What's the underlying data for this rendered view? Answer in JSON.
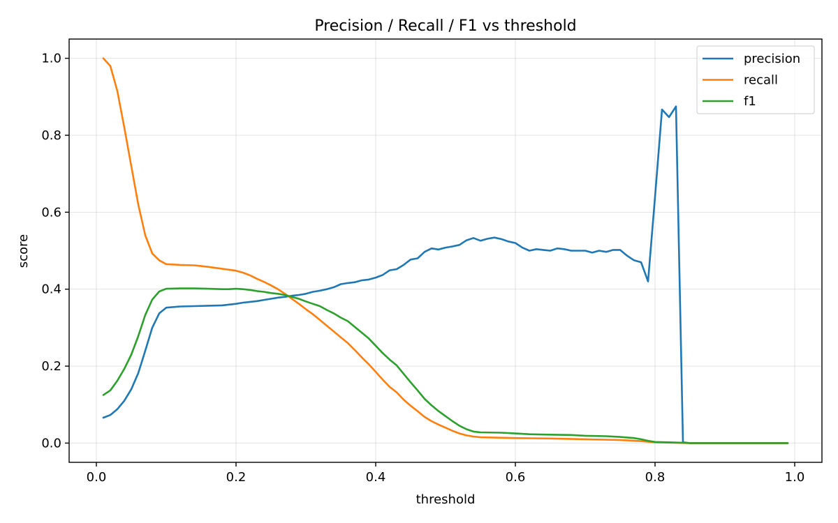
{
  "chart_data": {
    "type": "line",
    "title": "Precision / Recall / F1 vs threshold",
    "xlabel": "threshold",
    "ylabel": "score",
    "xlim": [
      -0.039,
      1.039
    ],
    "ylim": [
      -0.05,
      1.05
    ],
    "xticks": [
      0.0,
      0.2,
      0.4,
      0.6,
      0.8,
      1.0
    ],
    "xtick_labels": [
      "0.0",
      "0.2",
      "0.4",
      "0.6",
      "0.8",
      "1.0"
    ],
    "yticks": [
      0.0,
      0.2,
      0.4,
      0.6,
      0.8,
      1.0
    ],
    "ytick_labels": [
      "0.0",
      "0.2",
      "0.4",
      "0.6",
      "0.8",
      "1.0"
    ],
    "grid": true,
    "legend_position": "top-right",
    "series": [
      {
        "name": "precision",
        "color": "#1f77b4",
        "points": [
          [
            0.01,
            0.066
          ],
          [
            0.02,
            0.073
          ],
          [
            0.03,
            0.088
          ],
          [
            0.04,
            0.11
          ],
          [
            0.05,
            0.14
          ],
          [
            0.06,
            0.182
          ],
          [
            0.07,
            0.24
          ],
          [
            0.08,
            0.3
          ],
          [
            0.09,
            0.337
          ],
          [
            0.1,
            0.352
          ],
          [
            0.12,
            0.355
          ],
          [
            0.14,
            0.356
          ],
          [
            0.16,
            0.357
          ],
          [
            0.18,
            0.358
          ],
          [
            0.19,
            0.36
          ],
          [
            0.2,
            0.362
          ],
          [
            0.21,
            0.365
          ],
          [
            0.22,
            0.367
          ],
          [
            0.23,
            0.369
          ],
          [
            0.24,
            0.372
          ],
          [
            0.25,
            0.375
          ],
          [
            0.26,
            0.378
          ],
          [
            0.27,
            0.38
          ],
          [
            0.28,
            0.383
          ],
          [
            0.29,
            0.385
          ],
          [
            0.3,
            0.388
          ],
          [
            0.31,
            0.393
          ],
          [
            0.32,
            0.396
          ],
          [
            0.33,
            0.4
          ],
          [
            0.34,
            0.405
          ],
          [
            0.35,
            0.413
          ],
          [
            0.36,
            0.416
          ],
          [
            0.37,
            0.418
          ],
          [
            0.38,
            0.423
          ],
          [
            0.39,
            0.425
          ],
          [
            0.4,
            0.43
          ],
          [
            0.41,
            0.437
          ],
          [
            0.42,
            0.449
          ],
          [
            0.43,
            0.452
          ],
          [
            0.44,
            0.463
          ],
          [
            0.45,
            0.477
          ],
          [
            0.46,
            0.48
          ],
          [
            0.47,
            0.497
          ],
          [
            0.48,
            0.506
          ],
          [
            0.49,
            0.503
          ],
          [
            0.5,
            0.508
          ],
          [
            0.51,
            0.511
          ],
          [
            0.52,
            0.515
          ],
          [
            0.53,
            0.527
          ],
          [
            0.54,
            0.533
          ],
          [
            0.55,
            0.526
          ],
          [
            0.56,
            0.531
          ],
          [
            0.57,
            0.534
          ],
          [
            0.58,
            0.53
          ],
          [
            0.59,
            0.524
          ],
          [
            0.6,
            0.52
          ],
          [
            0.61,
            0.508
          ],
          [
            0.62,
            0.5
          ],
          [
            0.63,
            0.504
          ],
          [
            0.64,
            0.502
          ],
          [
            0.65,
            0.5
          ],
          [
            0.66,
            0.506
          ],
          [
            0.67,
            0.504
          ],
          [
            0.68,
            0.5
          ],
          [
            0.69,
            0.5
          ],
          [
            0.7,
            0.5
          ],
          [
            0.71,
            0.495
          ],
          [
            0.72,
            0.5
          ],
          [
            0.73,
            0.497
          ],
          [
            0.74,
            0.502
          ],
          [
            0.75,
            0.502
          ],
          [
            0.76,
            0.487
          ],
          [
            0.77,
            0.475
          ],
          [
            0.78,
            0.47
          ],
          [
            0.79,
            0.42
          ],
          [
            0.8,
            0.64
          ],
          [
            0.81,
            0.867
          ],
          [
            0.82,
            0.847
          ],
          [
            0.83,
            0.875
          ],
          [
            0.84,
            0.002
          ],
          [
            0.85,
            0.0
          ],
          [
            0.9,
            0.0
          ],
          [
            0.95,
            0.0
          ],
          [
            0.99,
            0.0
          ]
        ]
      },
      {
        "name": "recall",
        "color": "#ff7f0e",
        "points": [
          [
            0.01,
            1.0
          ],
          [
            0.02,
            0.98
          ],
          [
            0.03,
            0.915
          ],
          [
            0.04,
            0.82
          ],
          [
            0.05,
            0.72
          ],
          [
            0.06,
            0.62
          ],
          [
            0.07,
            0.54
          ],
          [
            0.08,
            0.493
          ],
          [
            0.09,
            0.475
          ],
          [
            0.1,
            0.465
          ],
          [
            0.12,
            0.463
          ],
          [
            0.14,
            0.462
          ],
          [
            0.15,
            0.46
          ],
          [
            0.16,
            0.458
          ],
          [
            0.18,
            0.453
          ],
          [
            0.2,
            0.448
          ],
          [
            0.21,
            0.443
          ],
          [
            0.22,
            0.436
          ],
          [
            0.23,
            0.427
          ],
          [
            0.24,
            0.419
          ],
          [
            0.25,
            0.41
          ],
          [
            0.26,
            0.4
          ],
          [
            0.27,
            0.388
          ],
          [
            0.28,
            0.375
          ],
          [
            0.29,
            0.362
          ],
          [
            0.3,
            0.348
          ],
          [
            0.31,
            0.335
          ],
          [
            0.32,
            0.32
          ],
          [
            0.33,
            0.305
          ],
          [
            0.34,
            0.29
          ],
          [
            0.35,
            0.275
          ],
          [
            0.36,
            0.26
          ],
          [
            0.37,
            0.242
          ],
          [
            0.38,
            0.223
          ],
          [
            0.39,
            0.205
          ],
          [
            0.4,
            0.185
          ],
          [
            0.41,
            0.165
          ],
          [
            0.42,
            0.146
          ],
          [
            0.43,
            0.132
          ],
          [
            0.44,
            0.113
          ],
          [
            0.45,
            0.097
          ],
          [
            0.46,
            0.083
          ],
          [
            0.47,
            0.068
          ],
          [
            0.48,
            0.057
          ],
          [
            0.49,
            0.048
          ],
          [
            0.5,
            0.04
          ],
          [
            0.51,
            0.032
          ],
          [
            0.52,
            0.025
          ],
          [
            0.53,
            0.02
          ],
          [
            0.54,
            0.017
          ],
          [
            0.55,
            0.015
          ],
          [
            0.6,
            0.013
          ],
          [
            0.65,
            0.012
          ],
          [
            0.7,
            0.01
          ],
          [
            0.75,
            0.008
          ],
          [
            0.78,
            0.005
          ],
          [
            0.8,
            0.002
          ],
          [
            0.85,
            0.0
          ],
          [
            0.9,
            0.0
          ],
          [
            0.95,
            0.0
          ],
          [
            0.99,
            0.0
          ]
        ]
      },
      {
        "name": "f1",
        "color": "#2ca02c",
        "points": [
          [
            0.01,
            0.125
          ],
          [
            0.02,
            0.137
          ],
          [
            0.03,
            0.162
          ],
          [
            0.04,
            0.193
          ],
          [
            0.05,
            0.23
          ],
          [
            0.06,
            0.278
          ],
          [
            0.07,
            0.333
          ],
          [
            0.08,
            0.373
          ],
          [
            0.09,
            0.394
          ],
          [
            0.1,
            0.401
          ],
          [
            0.12,
            0.402
          ],
          [
            0.14,
            0.402
          ],
          [
            0.16,
            0.401
          ],
          [
            0.18,
            0.4
          ],
          [
            0.19,
            0.4
          ],
          [
            0.2,
            0.401
          ],
          [
            0.21,
            0.4
          ],
          [
            0.22,
            0.398
          ],
          [
            0.23,
            0.395
          ],
          [
            0.24,
            0.393
          ],
          [
            0.25,
            0.39
          ],
          [
            0.26,
            0.388
          ],
          [
            0.27,
            0.385
          ],
          [
            0.28,
            0.38
          ],
          [
            0.29,
            0.375
          ],
          [
            0.3,
            0.368
          ],
          [
            0.31,
            0.362
          ],
          [
            0.32,
            0.356
          ],
          [
            0.33,
            0.346
          ],
          [
            0.34,
            0.337
          ],
          [
            0.35,
            0.326
          ],
          [
            0.36,
            0.317
          ],
          [
            0.37,
            0.302
          ],
          [
            0.38,
            0.287
          ],
          [
            0.39,
            0.272
          ],
          [
            0.4,
            0.253
          ],
          [
            0.41,
            0.234
          ],
          [
            0.42,
            0.217
          ],
          [
            0.43,
            0.202
          ],
          [
            0.44,
            0.18
          ],
          [
            0.45,
            0.158
          ],
          [
            0.46,
            0.137
          ],
          [
            0.47,
            0.115
          ],
          [
            0.48,
            0.098
          ],
          [
            0.49,
            0.083
          ],
          [
            0.5,
            0.07
          ],
          [
            0.51,
            0.057
          ],
          [
            0.52,
            0.045
          ],
          [
            0.53,
            0.036
          ],
          [
            0.54,
            0.03
          ],
          [
            0.55,
            0.028
          ],
          [
            0.58,
            0.027
          ],
          [
            0.6,
            0.025
          ],
          [
            0.62,
            0.023
          ],
          [
            0.65,
            0.022
          ],
          [
            0.68,
            0.021
          ],
          [
            0.7,
            0.019
          ],
          [
            0.73,
            0.018
          ],
          [
            0.75,
            0.016
          ],
          [
            0.77,
            0.013
          ],
          [
            0.78,
            0.01
          ],
          [
            0.79,
            0.006
          ],
          [
            0.8,
            0.003
          ],
          [
            0.82,
            0.002
          ],
          [
            0.84,
            0.001
          ],
          [
            0.85,
            0.0
          ],
          [
            0.9,
            0.0
          ],
          [
            0.95,
            0.0
          ],
          [
            0.99,
            0.0
          ]
        ]
      }
    ]
  }
}
